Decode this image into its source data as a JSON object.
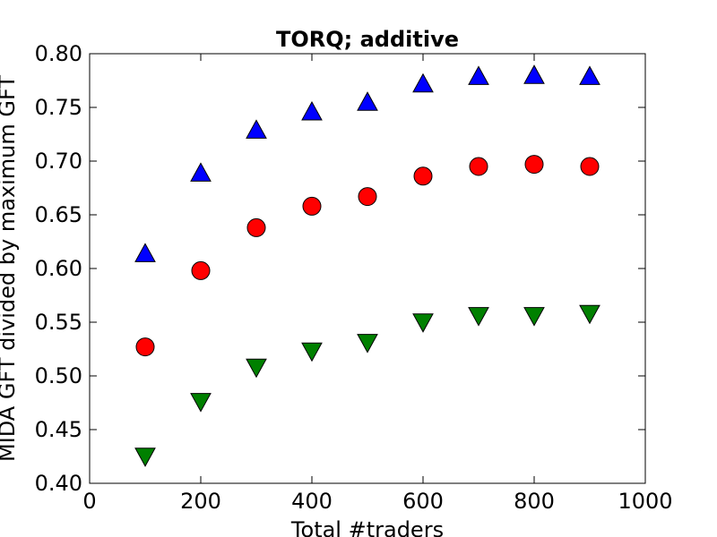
{
  "chart_data": {
    "type": "scatter",
    "title": "TORQ; additive",
    "xlabel": "Total #traders",
    "ylabel": "MIDA GFT divided by maximum GFT",
    "xlim": [
      0,
      1000
    ],
    "ylim": [
      0.4,
      0.8
    ],
    "xticks": [
      "0",
      "200",
      "400",
      "600",
      "800",
      "1000"
    ],
    "yticks": [
      "0.40",
      "0.45",
      "0.50",
      "0.55",
      "0.60",
      "0.65",
      "0.70",
      "0.75",
      "0.80"
    ],
    "grid": false,
    "x": [
      100,
      200,
      300,
      400,
      500,
      600,
      700,
      800,
      900
    ],
    "series": [
      {
        "marker": "triangle-up",
        "color": "#0000ff",
        "values": [
          0.613,
          0.688,
          0.728,
          0.745,
          0.754,
          0.771,
          0.778,
          0.779,
          0.778
        ]
      },
      {
        "marker": "circle",
        "color": "#ff0000",
        "values": [
          0.527,
          0.598,
          0.638,
          0.658,
          0.667,
          0.686,
          0.695,
          0.697,
          0.695
        ]
      },
      {
        "marker": "triangle-down",
        "color": "#008000",
        "values": [
          0.426,
          0.477,
          0.509,
          0.524,
          0.532,
          0.551,
          0.557,
          0.557,
          0.559
        ]
      }
    ]
  }
}
